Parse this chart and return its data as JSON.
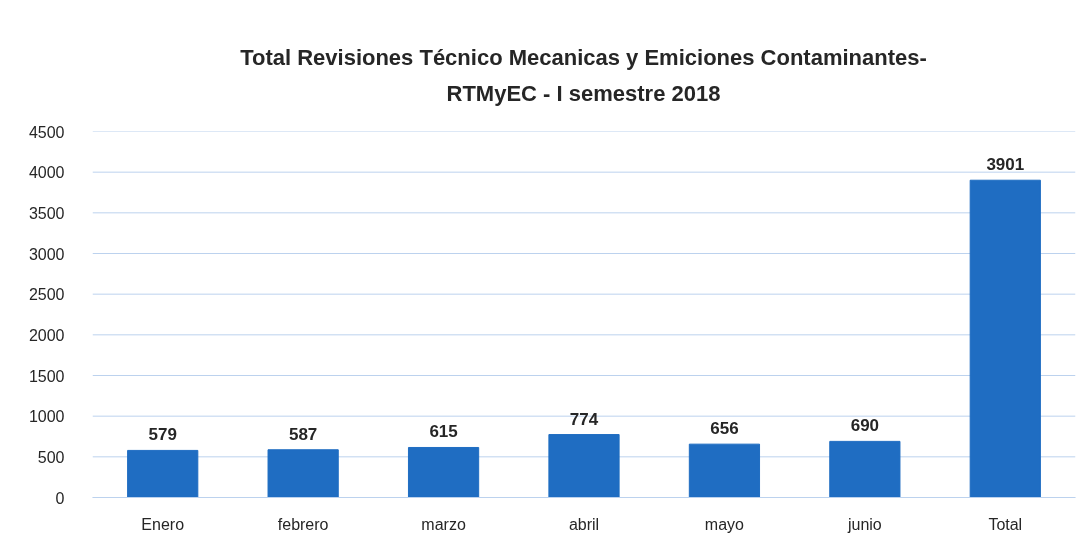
{
  "chart_data": {
    "type": "bar",
    "title": "Total Revisiones Técnico Mecanicas y Emiciones Contaminantes-\nRTMyEC - I semestre 2018",
    "categories": [
      "Enero",
      "febrero",
      "marzo",
      "abril",
      "mayo",
      "junio",
      "Total"
    ],
    "values": [
      579,
      587,
      615,
      774,
      656,
      690,
      3901
    ],
    "color": "#1f6dc2",
    "ylim": [
      0,
      4500
    ],
    "yticks": [
      0,
      500,
      1000,
      1500,
      2000,
      2500,
      3000,
      3500,
      4000,
      4500
    ],
    "grid": "y",
    "data_labels": true
  }
}
